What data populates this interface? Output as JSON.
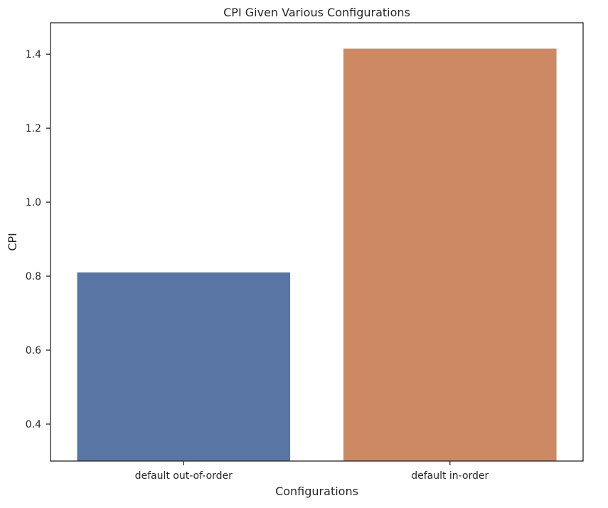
{
  "chart_data": {
    "type": "bar",
    "title": "CPI Given Various Configurations",
    "xlabel": "Configurations",
    "ylabel": "CPI",
    "categories": [
      "default out-of-order",
      "default in-order"
    ],
    "values": [
      0.81,
      1.415
    ],
    "colors": [
      "#5975a4",
      "#cc8963"
    ],
    "ylim": [
      0.3,
      1.485
    ],
    "yticks": [
      0.4,
      0.6,
      0.8,
      1.0,
      1.2,
      1.4
    ],
    "ytick_labels": [
      "0.4",
      "0.6",
      "0.8",
      "1.0",
      "1.2",
      "1.4"
    ],
    "grid": false,
    "legend": "none"
  }
}
